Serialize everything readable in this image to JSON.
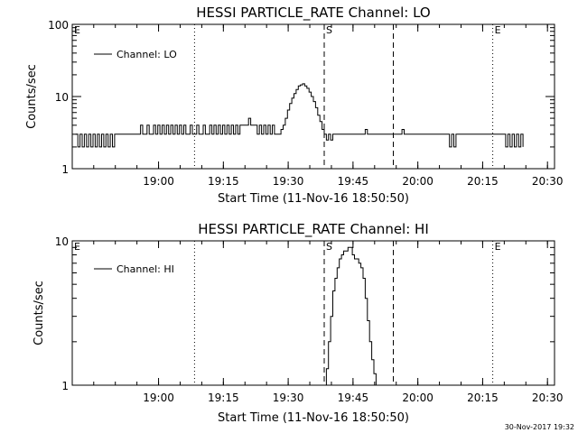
{
  "footer_timestamp": "30-Nov-2017 19:32",
  "chart_data": [
    {
      "type": "line",
      "title": "HESSI PARTICLE_RATE Channel: LO",
      "xlabel": "Start Time (11-Nov-16 18:50:50)",
      "ylabel": "Counts/sec",
      "yscale": "log",
      "ylim": [
        1,
        100
      ],
      "xlim_minutes": [
        -10.8,
        100.8
      ],
      "x_tick_labels": [
        "19:00",
        "19:15",
        "19:30",
        "19:45",
        "20:00",
        "20:15",
        "20:30"
      ],
      "y_tick_labels": [
        "1",
        "10",
        "100"
      ],
      "legend": "top-left",
      "series": [
        {
          "name": "Channel: LO",
          "x_minutes_after_start": [
            -10.0,
            -9.5,
            -9.0,
            -8.5,
            -8.0,
            -7.5,
            -7.0,
            -6.5,
            -6.0,
            -5.5,
            -5.0,
            -4.5,
            -4.0,
            -3.5,
            -3.0,
            -2.5,
            -2.0,
            -1.5,
            -1.0,
            -0.5,
            0.0,
            0.5,
            1.0,
            1.5,
            2.0,
            2.5,
            3.0,
            3.5,
            4.0,
            4.5,
            5.0,
            5.5,
            6.0,
            6.5,
            7.0,
            7.5,
            8.0,
            8.5,
            9.0,
            9.5,
            10.0,
            10.5,
            11.0,
            11.5,
            12.0,
            12.5,
            13.0,
            13.5,
            14.0,
            14.5,
            15.0,
            15.5,
            16.0,
            16.5,
            17.0,
            17.5,
            18.0,
            18.5,
            19.0,
            19.5,
            20.0,
            20.5,
            21.0,
            21.5,
            22.0,
            22.5,
            23.0,
            23.5,
            24.0,
            24.5,
            25.0,
            25.5,
            26.0,
            26.5,
            27.0,
            27.5,
            28.0,
            28.5,
            29.0,
            29.5,
            30.0,
            30.5,
            31.0,
            31.5,
            32.0,
            32.5,
            33.0,
            33.5,
            34.0,
            34.5,
            35.0,
            35.5,
            36.0,
            36.5,
            37.0,
            37.5,
            38.0,
            38.5,
            39.0,
            39.5,
            40.0,
            40.5,
            41.0,
            41.5,
            42.0,
            42.5,
            43.0,
            43.5,
            44.0,
            44.5,
            45.0,
            45.5,
            46.0,
            46.5,
            47.0,
            47.5,
            48.0,
            48.5,
            49.0,
            49.5,
            50.0,
            50.5,
            51.0,
            51.5,
            52.0,
            52.5,
            53.0,
            53.5,
            54.0,
            54.5,
            55.0,
            55.5,
            56.0,
            56.5,
            57.0,
            57.5,
            58.0,
            58.5,
            59.0,
            59.5,
            60.0,
            60.5,
            61.0,
            61.5,
            62.0,
            62.5,
            63.0,
            63.5,
            64.0,
            64.5,
            65.0,
            65.5,
            66.0,
            66.5,
            67.0,
            67.5,
            68.0,
            68.5,
            69.0,
            69.5,
            70.0,
            70.5,
            71.0,
            71.5,
            72.0,
            72.5,
            73.0,
            73.5,
            74.0,
            74.5,
            75.0,
            75.5,
            76.0,
            76.5,
            77.0,
            77.5,
            78.0,
            78.5,
            79.0,
            79.5,
            80.0,
            80.5,
            81.0,
            81.5,
            82.0,
            82.5,
            83.0,
            83.5,
            84.0,
            84.5,
            85.0,
            85.5,
            86.0,
            86.5,
            87.0,
            87.5,
            88.0,
            88.5,
            89.0,
            89.5,
            90.0,
            90.5,
            91.0,
            91.5,
            92.0,
            92.5,
            93.0,
            93.5
          ],
          "values": [
            3,
            2,
            3,
            2,
            3,
            2,
            3,
            2,
            3,
            2,
            3,
            2,
            3,
            2,
            3,
            2,
            3,
            2,
            3,
            3,
            3,
            3,
            3,
            3,
            3,
            3,
            3,
            3,
            3,
            3,
            4,
            3,
            3,
            4,
            3,
            3,
            4,
            3,
            4,
            3,
            4,
            3,
            4,
            3,
            4,
            3,
            4,
            3,
            4,
            3,
            4,
            3,
            3,
            4,
            3,
            3,
            4,
            3,
            3,
            4,
            3,
            3,
            4,
            3,
            4,
            3,
            4,
            3,
            4,
            3,
            4,
            3,
            4,
            3,
            4,
            3,
            4,
            4,
            4,
            4,
            5,
            4,
            4,
            4,
            3,
            4,
            3,
            4,
            3,
            4,
            3,
            4,
            3,
            3,
            3,
            3.5,
            4,
            5,
            6.5,
            8,
            9.5,
            11,
            12.5,
            14,
            14.5,
            15,
            14,
            13,
            11.5,
            10,
            8.5,
            7,
            5.5,
            4.5,
            3.5,
            3,
            2.5,
            3,
            2.5,
            3,
            3,
            3,
            3,
            3,
            3,
            3,
            3,
            3,
            3,
            3,
            3,
            3,
            3,
            3,
            3.5,
            3,
            3,
            3,
            3,
            3,
            3,
            3,
            3,
            3,
            3,
            3,
            3,
            3,
            3,
            3,
            3,
            3.5,
            3,
            3,
            3,
            3,
            3,
            3,
            3,
            3,
            3,
            3,
            3,
            3,
            3,
            3,
            3,
            3,
            3,
            3,
            3,
            3,
            3,
            2,
            3,
            2,
            3,
            3,
            3,
            3,
            3,
            3,
            3,
            3,
            3,
            3,
            3,
            3,
            3,
            3,
            3,
            3,
            3,
            3,
            3,
            3,
            3,
            3,
            3,
            2,
            3,
            2,
            3,
            2,
            3,
            2,
            3,
            2,
            3,
            2,
            3,
            3,
            3
          ]
        }
      ],
      "markers": [
        {
          "label": "E",
          "minute": -10.8,
          "style": "dotted"
        },
        {
          "label": "",
          "minute": 17.5,
          "style": "dotted"
        },
        {
          "label": "S",
          "minute": 47.5,
          "style": "dashed"
        },
        {
          "label": "",
          "minute": 63.5,
          "style": "dashed"
        },
        {
          "label": "E",
          "minute": 86.5,
          "style": "dotted"
        },
        {
          "label": "",
          "minute": 115.5,
          "style": "dotted"
        }
      ]
    },
    {
      "type": "line",
      "title": "HESSI PARTICLE_RATE Channel: HI",
      "xlabel": "Start Time (11-Nov-16 18:50:50)",
      "ylabel": "Counts/sec",
      "yscale": "log",
      "ylim": [
        1,
        10
      ],
      "xlim_minutes": [
        -10.8,
        100.8
      ],
      "x_tick_labels": [
        "19:00",
        "19:15",
        "19:30",
        "19:45",
        "20:00",
        "20:15",
        "20:30"
      ],
      "y_tick_labels": [
        "1",
        "10"
      ],
      "legend": "top-left",
      "series": [
        {
          "name": "Channel: HI",
          "x_minutes_after_start": [
            47.5,
            48.0,
            48.5,
            49.0,
            49.5,
            50.0,
            50.5,
            51.0,
            51.5,
            52.0,
            52.5,
            53.0,
            53.5,
            54.0,
            54.5,
            55.0,
            55.5,
            56.0,
            56.5,
            57.0,
            57.5,
            58.0,
            58.5,
            59.0,
            59.5,
            60.0
          ],
          "values": [
            1,
            1.3,
            2,
            3,
            4.5,
            5.5,
            6.5,
            7.5,
            8,
            8.5,
            8.5,
            9,
            9,
            8,
            7.5,
            7.5,
            7,
            6.5,
            5.5,
            4,
            2.8,
            2,
            1.5,
            1.2,
            1,
            1
          ]
        }
      ],
      "markers": [
        {
          "label": "E",
          "minute": -10.8,
          "style": "dotted"
        },
        {
          "label": "",
          "minute": 17.5,
          "style": "dotted"
        },
        {
          "label": "S",
          "minute": 47.5,
          "style": "dashed"
        },
        {
          "label": "",
          "minute": 63.5,
          "style": "dashed"
        },
        {
          "label": "E",
          "minute": 86.5,
          "style": "dotted"
        },
        {
          "label": "",
          "minute": 115.5,
          "style": "dotted"
        }
      ]
    }
  ]
}
